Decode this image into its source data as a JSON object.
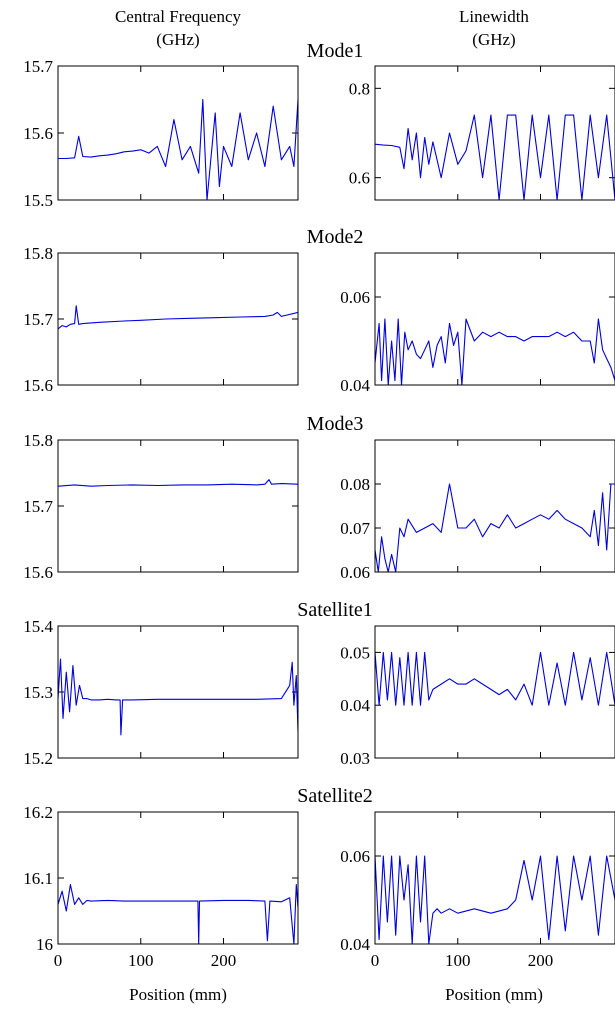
{
  "column_titles": [
    {
      "line1": "Central Frequency",
      "line2": "(GHz)"
    },
    {
      "line1": "Linewidth",
      "line2": "(GHz)"
    }
  ],
  "colors": {
    "line": "#0000dd",
    "axes": "#000000"
  },
  "x_axis": {
    "label": "Position (mm)",
    "ticks": [
      0,
      100,
      200
    ],
    "range": [
      0,
      290
    ]
  },
  "chart_data": [
    {
      "type": "line",
      "panel": "Mode1",
      "quantity": "Central Frequency (GHz)",
      "ylim": [
        15.5,
        15.7
      ],
      "yticks": [
        "15.5",
        "15.6",
        "15.7"
      ],
      "x": [
        0,
        10,
        20,
        25,
        30,
        40,
        50,
        60,
        70,
        80,
        90,
        100,
        110,
        120,
        130,
        140,
        150,
        160,
        170,
        175,
        180,
        190,
        195,
        200,
        210,
        220,
        230,
        240,
        250,
        260,
        270,
        280,
        285,
        290
      ],
      "y": [
        15.562,
        15.562,
        15.563,
        15.595,
        15.565,
        15.564,
        15.566,
        15.567,
        15.569,
        15.572,
        15.573,
        15.575,
        15.57,
        15.58,
        15.55,
        15.62,
        15.56,
        15.58,
        15.54,
        15.65,
        15.5,
        15.63,
        15.52,
        15.58,
        15.55,
        15.63,
        15.56,
        15.6,
        15.55,
        15.64,
        15.56,
        15.58,
        15.55,
        15.65
      ]
    },
    {
      "type": "line",
      "panel": "Mode1",
      "quantity": "Linewidth (GHz)",
      "ylim": [
        0.55,
        0.85
      ],
      "yticks": [
        "0.6",
        "0.8"
      ],
      "x": [
        0,
        10,
        20,
        30,
        35,
        40,
        45,
        50,
        55,
        60,
        65,
        70,
        80,
        90,
        100,
        110,
        120,
        130,
        140,
        150,
        160,
        170,
        180,
        190,
        200,
        210,
        220,
        230,
        240,
        250,
        260,
        270,
        280,
        290
      ],
      "y": [
        0.675,
        0.673,
        0.672,
        0.668,
        0.62,
        0.71,
        0.64,
        0.7,
        0.6,
        0.69,
        0.63,
        0.68,
        0.6,
        0.7,
        0.63,
        0.66,
        0.74,
        0.6,
        0.74,
        0.55,
        0.74,
        0.74,
        0.55,
        0.74,
        0.6,
        0.74,
        0.55,
        0.74,
        0.74,
        0.55,
        0.74,
        0.6,
        0.74,
        0.55
      ]
    },
    {
      "type": "line",
      "panel": "Mode2",
      "quantity": "Central Frequency (GHz)",
      "ylim": [
        15.6,
        15.8
      ],
      "yticks": [
        "15.6",
        "15.7",
        "15.8"
      ],
      "x": [
        0,
        5,
        10,
        15,
        20,
        22,
        25,
        30,
        50,
        80,
        100,
        130,
        160,
        190,
        220,
        250,
        260,
        265,
        270,
        290
      ],
      "y": [
        15.685,
        15.69,
        15.688,
        15.692,
        15.693,
        15.72,
        15.692,
        15.693,
        15.695,
        15.697,
        15.698,
        15.7,
        15.701,
        15.702,
        15.703,
        15.704,
        15.706,
        15.71,
        15.704,
        15.71
      ]
    },
    {
      "type": "line",
      "panel": "Mode2",
      "quantity": "Linewidth (GHz)",
      "ylim": [
        0.04,
        0.07
      ],
      "yticks": [
        "0.04",
        "0.06"
      ],
      "x": [
        0,
        5,
        8,
        12,
        16,
        20,
        24,
        28,
        32,
        36,
        40,
        45,
        50,
        55,
        60,
        65,
        70,
        75,
        80,
        85,
        90,
        95,
        100,
        105,
        110,
        120,
        130,
        140,
        150,
        160,
        170,
        180,
        190,
        200,
        210,
        220,
        230,
        240,
        250,
        260,
        265,
        270,
        275,
        280,
        285,
        290
      ],
      "y": [
        0.045,
        0.054,
        0.041,
        0.055,
        0.04,
        0.05,
        0.041,
        0.055,
        0.04,
        0.052,
        0.048,
        0.05,
        0.047,
        0.046,
        0.048,
        0.05,
        0.044,
        0.049,
        0.051,
        0.045,
        0.054,
        0.049,
        0.052,
        0.04,
        0.055,
        0.05,
        0.052,
        0.051,
        0.052,
        0.051,
        0.051,
        0.05,
        0.051,
        0.051,
        0.051,
        0.052,
        0.051,
        0.052,
        0.05,
        0.05,
        0.045,
        0.055,
        0.048,
        0.046,
        0.044,
        0.041
      ]
    },
    {
      "type": "line",
      "panel": "Mode3",
      "quantity": "Central Frequency (GHz)",
      "ylim": [
        15.6,
        15.8
      ],
      "yticks": [
        "15.6",
        "15.7",
        "15.8"
      ],
      "x": [
        0,
        20,
        40,
        60,
        90,
        120,
        150,
        180,
        210,
        240,
        250,
        255,
        258,
        270,
        290
      ],
      "y": [
        15.73,
        15.732,
        15.73,
        15.731,
        15.732,
        15.731,
        15.732,
        15.732,
        15.733,
        15.732,
        15.733,
        15.74,
        15.733,
        15.734,
        15.733
      ]
    },
    {
      "type": "line",
      "panel": "Mode3",
      "quantity": "Linewidth (GHz)",
      "ylim": [
        0.06,
        0.09
      ],
      "yticks": [
        "0.06",
        "0.07",
        "0.08"
      ],
      "x": [
        0,
        4,
        8,
        12,
        16,
        20,
        25,
        30,
        35,
        40,
        50,
        60,
        70,
        80,
        90,
        100,
        110,
        120,
        130,
        140,
        150,
        160,
        170,
        180,
        190,
        200,
        210,
        220,
        230,
        240,
        250,
        260,
        265,
        270,
        275,
        280,
        285,
        290
      ],
      "y": [
        0.065,
        0.06,
        0.068,
        0.063,
        0.06,
        0.064,
        0.06,
        0.07,
        0.068,
        0.072,
        0.069,
        0.07,
        0.071,
        0.069,
        0.08,
        0.07,
        0.07,
        0.072,
        0.068,
        0.071,
        0.07,
        0.073,
        0.07,
        0.071,
        0.072,
        0.073,
        0.072,
        0.074,
        0.072,
        0.071,
        0.07,
        0.068,
        0.074,
        0.066,
        0.078,
        0.065,
        0.08,
        0.08
      ]
    },
    {
      "type": "line",
      "panel": "Satellite1",
      "quantity": "Central Frequency (GHz)",
      "ylim": [
        15.2,
        15.4
      ],
      "yticks": [
        "15.2",
        "15.3",
        "15.4"
      ],
      "x": [
        0,
        3,
        6,
        10,
        14,
        18,
        22,
        26,
        30,
        35,
        40,
        50,
        60,
        70,
        75,
        76,
        78,
        90,
        120,
        150,
        180,
        210,
        240,
        270,
        280,
        283,
        285,
        288,
        290
      ],
      "y": [
        15.29,
        15.35,
        15.26,
        15.33,
        15.27,
        15.34,
        15.28,
        15.31,
        15.29,
        15.29,
        15.288,
        15.288,
        15.289,
        15.288,
        15.288,
        15.235,
        15.288,
        15.288,
        15.289,
        15.289,
        15.289,
        15.289,
        15.289,
        15.29,
        15.31,
        15.345,
        15.28,
        15.325,
        15.24
      ]
    },
    {
      "type": "line",
      "panel": "Satellite1",
      "quantity": "Linewidth (GHz)",
      "ylim": [
        0.03,
        0.055
      ],
      "yticks": [
        "0.03",
        "0.04",
        "0.05"
      ],
      "x": [
        0,
        5,
        10,
        15,
        20,
        25,
        30,
        35,
        40,
        45,
        50,
        55,
        60,
        65,
        70,
        80,
        90,
        100,
        110,
        120,
        130,
        140,
        150,
        160,
        170,
        180,
        190,
        200,
        210,
        220,
        230,
        240,
        250,
        260,
        270,
        280,
        290
      ],
      "y": [
        0.05,
        0.04,
        0.05,
        0.041,
        0.05,
        0.04,
        0.049,
        0.04,
        0.05,
        0.04,
        0.05,
        0.04,
        0.05,
        0.041,
        0.043,
        0.044,
        0.045,
        0.044,
        0.044,
        0.045,
        0.044,
        0.043,
        0.042,
        0.043,
        0.041,
        0.044,
        0.04,
        0.05,
        0.04,
        0.048,
        0.04,
        0.05,
        0.041,
        0.049,
        0.04,
        0.05,
        0.04
      ]
    },
    {
      "type": "line",
      "panel": "Satellite2",
      "quantity": "Central Frequency (GHz)",
      "ylim": [
        16.0,
        16.2
      ],
      "yticks": [
        "16",
        "16.1",
        "16.2"
      ],
      "x": [
        0,
        5,
        10,
        15,
        20,
        25,
        30,
        35,
        40,
        60,
        80,
        100,
        120,
        140,
        160,
        169,
        170,
        171,
        200,
        230,
        250,
        253,
        256,
        270,
        280,
        285,
        288,
        290
      ],
      "y": [
        16.06,
        16.08,
        16.05,
        16.09,
        16.06,
        16.07,
        16.06,
        16.066,
        16.065,
        16.066,
        16.065,
        16.065,
        16.065,
        16.065,
        16.065,
        16.065,
        16.0,
        16.065,
        16.066,
        16.066,
        16.065,
        16.005,
        16.065,
        16.064,
        16.07,
        16.0,
        16.09,
        16.055
      ]
    },
    {
      "type": "line",
      "panel": "Satellite2",
      "quantity": "Linewidth (GHz)",
      "ylim": [
        0.04,
        0.07
      ],
      "yticks": [
        "0.04",
        "0.06"
      ],
      "x": [
        0,
        5,
        10,
        15,
        20,
        25,
        30,
        35,
        40,
        45,
        50,
        55,
        60,
        65,
        70,
        75,
        80,
        90,
        100,
        120,
        140,
        160,
        170,
        180,
        190,
        200,
        210,
        220,
        230,
        240,
        250,
        260,
        270,
        280,
        290
      ],
      "y": [
        0.06,
        0.041,
        0.06,
        0.045,
        0.06,
        0.042,
        0.06,
        0.05,
        0.058,
        0.04,
        0.06,
        0.045,
        0.06,
        0.04,
        0.047,
        0.048,
        0.047,
        0.048,
        0.047,
        0.048,
        0.047,
        0.048,
        0.05,
        0.059,
        0.05,
        0.06,
        0.041,
        0.06,
        0.043,
        0.06,
        0.05,
        0.06,
        0.042,
        0.06,
        0.05
      ]
    }
  ]
}
